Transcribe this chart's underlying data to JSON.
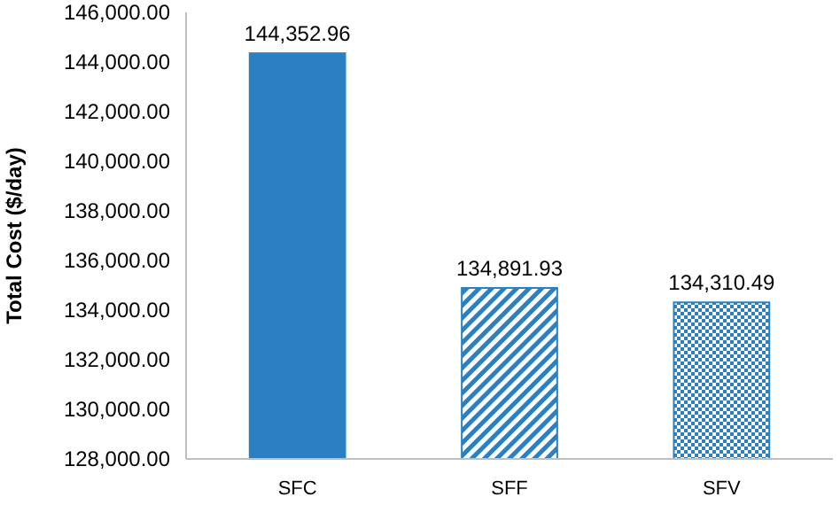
{
  "chart_data": {
    "type": "bar",
    "ylabel": "Total Cost ($/day)",
    "categories": [
      "SFC",
      "SFF",
      "SFV"
    ],
    "values": [
      144352.96,
      134891.93,
      134310.49
    ],
    "value_labels": [
      "144,352.96",
      "134,891.93",
      "134,310.49"
    ],
    "colors": [
      "#2a80c2",
      "#2a80c2",
      "#2a80c2"
    ],
    "ylim": [
      128000,
      146000
    ],
    "yticks": [
      {
        "value": 128000,
        "label": "128,000.00"
      },
      {
        "value": 130000,
        "label": "130,000.00"
      },
      {
        "value": 132000,
        "label": "132,000.00"
      },
      {
        "value": 134000,
        "label": "134,000.00"
      },
      {
        "value": 136000,
        "label": "136,000.00"
      },
      {
        "value": 138000,
        "label": "138,000.00"
      },
      {
        "value": 140000,
        "label": "140,000.00"
      },
      {
        "value": 142000,
        "label": "142,000.00"
      },
      {
        "value": 144000,
        "label": "144,000.00"
      },
      {
        "value": 146000,
        "label": "146,000.00"
      }
    ],
    "grid": false
  }
}
